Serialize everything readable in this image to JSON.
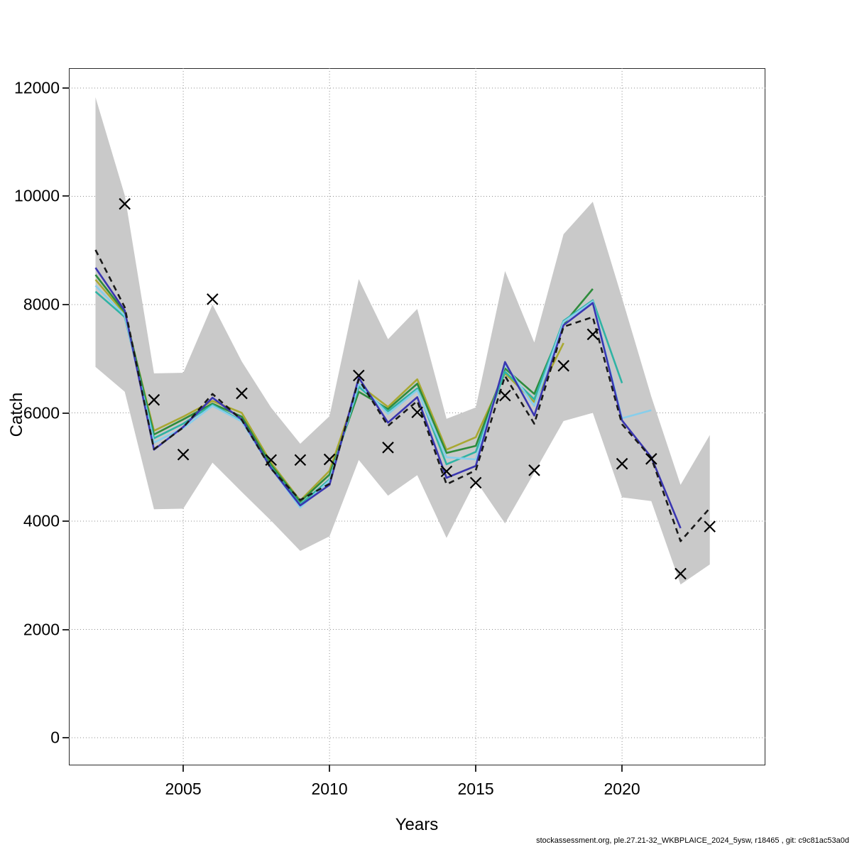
{
  "axes": {
    "xlabel": "Years",
    "ylabel": "Catch",
    "x_ticks": [
      2005,
      2010,
      2015,
      2020
    ],
    "y_ticks": [
      0,
      2000,
      4000,
      6000,
      8000,
      10000,
      12000
    ],
    "x_range": [
      2001.09,
      2024.9
    ],
    "y_range": [
      -511,
      12367
    ],
    "grid": "dotted"
  },
  "footer": "stockassessment.org, ple.27.21-32_WKBPLAICE_2024_5ysw, r18465 , git: c9c81ac53a0d",
  "colors": {
    "band": "#c9c9c9",
    "grid": "#8f8f8f",
    "frame": "#2b2b2b",
    "marker": "#000000",
    "current_run": "#1a1a1a",
    "retro_2022": "#3a36b1",
    "retro_2021": "#87ceeb",
    "retro_2020": "#2fb3a4",
    "retro_2019": "#2e8b3c",
    "retro_2018": "#a9a832"
  },
  "chart_data": {
    "type": "line",
    "title": "",
    "xlabel": "Years",
    "ylabel": "Catch",
    "ylim": [
      -511,
      12367
    ],
    "xlim": [
      2001.09,
      2024.9
    ],
    "legend_position": "none",
    "grid": true,
    "x": [
      2002,
      2003,
      2004,
      2005,
      2006,
      2007,
      2008,
      2009,
      2010,
      2011,
      2012,
      2013,
      2014,
      2015,
      2016,
      2017,
      2018,
      2019,
      2020,
      2021,
      2022,
      2023
    ],
    "band": {
      "name": "confidence-interval",
      "upper": [
        11830,
        10020,
        6730,
        6740,
        8000,
        6950,
        6100,
        5430,
        5940,
        8470,
        7360,
        7920,
        5890,
        6100,
        8620,
        7300,
        9300,
        9900,
        8120,
        6300,
        4670,
        5590
      ],
      "lower": [
        6850,
        6390,
        4220,
        4230,
        5080,
        4540,
        4010,
        3450,
        3720,
        5130,
        4470,
        4850,
        3690,
        4750,
        3960,
        4900,
        5850,
        6000,
        4440,
        4370,
        2830,
        3200
      ]
    },
    "series": [
      {
        "name": "retro-peel-2018",
        "color_key": "retro_2018",
        "dash": null,
        "start_year": 2002,
        "values": [
          8460,
          7830,
          5670,
          5930,
          6220,
          6000,
          5080,
          4380,
          4930,
          6520,
          6110,
          6620,
          5320,
          5550,
          6730,
          6200,
          7290
        ]
      },
      {
        "name": "retro-peel-2019",
        "color_key": "retro_2019",
        "dash": null,
        "start_year": 2002,
        "values": [
          8550,
          7860,
          5600,
          5880,
          6170,
          5930,
          5040,
          4360,
          4860,
          6390,
          6070,
          6540,
          5260,
          5390,
          6820,
          6350,
          7640,
          8290
        ]
      },
      {
        "name": "retro-peel-2020",
        "color_key": "retro_2020",
        "dash": null,
        "start_year": 2002,
        "values": [
          8240,
          7770,
          5530,
          5800,
          6150,
          5850,
          5000,
          4310,
          4770,
          6480,
          6030,
          6450,
          5050,
          5280,
          6760,
          6250,
          7700,
          8080,
          6550
        ]
      },
      {
        "name": "retro-peel-2021",
        "color_key": "retro_2021",
        "dash": null,
        "start_year": 2002,
        "values": [
          8350,
          7800,
          5450,
          5720,
          6130,
          5840,
          4980,
          4250,
          4750,
          6540,
          5980,
          6420,
          5180,
          5140,
          6900,
          6130,
          7680,
          8060,
          5900,
          6050
        ]
      },
      {
        "name": "retro-peel-2022",
        "color_key": "retro_2022",
        "dash": null,
        "start_year": 2002,
        "values": [
          8680,
          7890,
          5320,
          5740,
          6280,
          5880,
          4980,
          4290,
          4670,
          6650,
          5820,
          6290,
          4800,
          5020,
          6940,
          5950,
          7620,
          8030,
          5860,
          5180,
          3870
        ]
      },
      {
        "name": "current-run",
        "color_key": "current_run",
        "dash": [
          8,
          6
        ],
        "start_year": 2002,
        "values": [
          9010,
          7950,
          5330,
          5730,
          6350,
          5870,
          4970,
          4390,
          4690,
          6620,
          5760,
          6220,
          4680,
          4940,
          6680,
          5800,
          7590,
          7770,
          5790,
          5170,
          3630,
          4240
        ]
      }
    ],
    "markers": {
      "name": "observed-catch",
      "symbol": "x",
      "start_year": 2003,
      "values": [
        9860,
        6240,
        5230,
        8100,
        6360,
        5130,
        5130,
        5140,
        6690,
        5360,
        6010,
        4920,
        4710,
        6320,
        4940,
        6870,
        7450,
        5060,
        5150,
        3030,
        3900
      ]
    }
  }
}
